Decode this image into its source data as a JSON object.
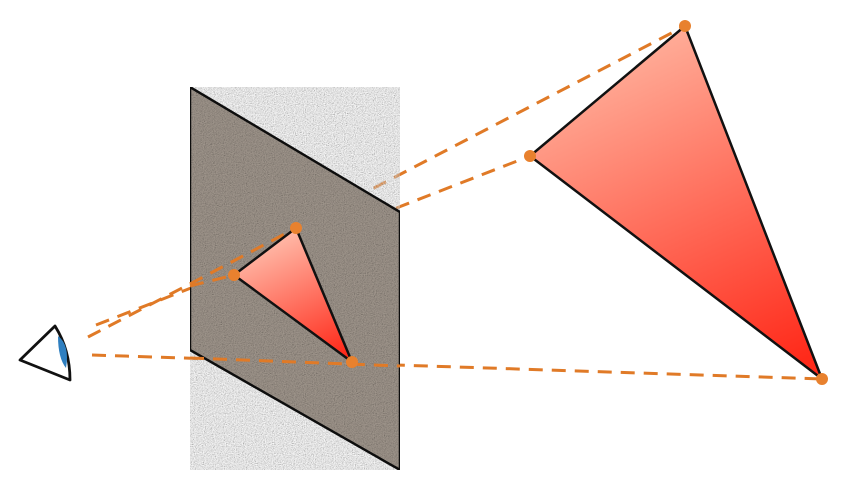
{
  "colors": {
    "background": "#ffffff",
    "projection_ray": "#e07a27",
    "vertex_dot": "#e8812e",
    "triangle_top": "#ffb8a3",
    "triangle_bottom": "#ff2a1a",
    "triangle_outline": "#111111",
    "plane_base": "#a49a90",
    "plane_outline": "#111111",
    "eye_iris": "#2f7fc0",
    "eye_outline": "#111111"
  },
  "icons": {
    "eye": "eye-icon"
  }
}
